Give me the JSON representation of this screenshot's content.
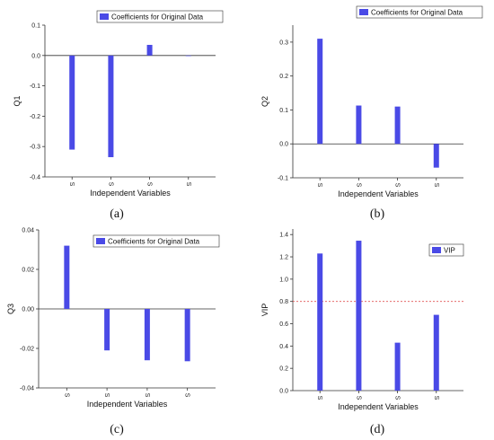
{
  "bar_color": "#4a4ae6",
  "vip_threshold_color": "#e05555",
  "chart_data": [
    {
      "type": "bar",
      "panel_label": "(a)",
      "title": "",
      "xlabel": "Independent Variables",
      "ylabel": "Q1",
      "categories": [
        "S",
        "S",
        "S",
        "S"
      ],
      "legend": "Coefficients for Original Data",
      "legend_position": "top-right",
      "values": [
        -0.31,
        -0.335,
        0.035,
        -0.001
      ],
      "ylim": [
        -0.4,
        0.1
      ],
      "yticks": [
        "-0.4",
        "-0.3",
        "-0.2",
        "-0.1",
        "0.0",
        "0.1"
      ],
      "grid": false
    },
    {
      "type": "bar",
      "panel_label": "(b)",
      "title": "",
      "xlabel": "Independent Variables",
      "ylabel": "Q2",
      "categories": [
        "S",
        "S",
        "S",
        "S"
      ],
      "legend": "Coefficients for Original Data",
      "legend_position": "top-right",
      "values": [
        0.31,
        0.113,
        0.11,
        -0.07
      ],
      "ylim": [
        -0.1,
        0.35
      ],
      "yticks": [
        "-0.1",
        "0.0",
        "0.1",
        "0.2",
        "0.3"
      ],
      "grid": false
    },
    {
      "type": "bar",
      "panel_label": "(c)",
      "title": "",
      "xlabel": "Independent Variables",
      "ylabel": "Q3",
      "categories": [
        "S",
        "S",
        "S",
        "S"
      ],
      "legend": "Coefficients for Original Data",
      "legend_position": "top-right",
      "values": [
        0.032,
        -0.021,
        -0.026,
        -0.0265
      ],
      "ylim": [
        -0.04,
        0.04
      ],
      "yticks": [
        "-0.04",
        "-0.02",
        "0.00",
        "0.02",
        "0.04"
      ],
      "grid": false
    },
    {
      "type": "bar",
      "panel_label": "(d)",
      "title": "",
      "xlabel": "Independent Variables",
      "ylabel": "VIP",
      "categories": [
        "S",
        "S",
        "S",
        "S"
      ],
      "legend": "VIP",
      "legend_position": "top-right",
      "values": [
        1.23,
        1.345,
        0.43,
        0.68
      ],
      "ylim": [
        0,
        1.45
      ],
      "yticks": [
        "0.0",
        "0.2",
        "0.4",
        "0.6",
        "0.8",
        "1.0",
        "1.2",
        "1.4"
      ],
      "reference_line": 0.8,
      "grid": false
    }
  ]
}
